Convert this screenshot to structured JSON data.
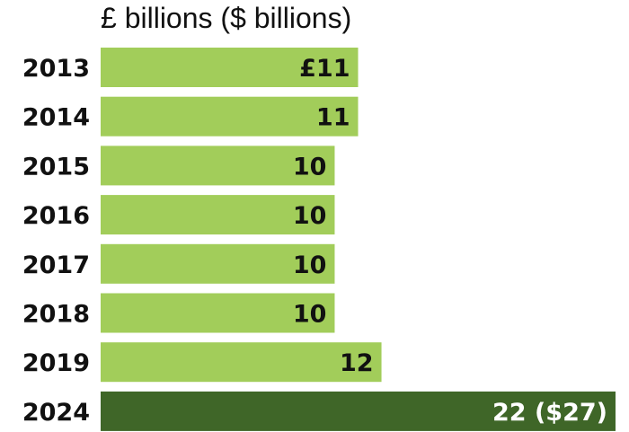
{
  "chart_data": {
    "type": "bar",
    "orientation": "horizontal",
    "title": "£ billions ($ billions)",
    "categories": [
      "2013",
      "2014",
      "2015",
      "2016",
      "2017",
      "2018",
      "2019",
      "2024"
    ],
    "values": [
      11,
      11,
      10,
      10,
      10,
      10,
      12,
      22
    ],
    "data_labels": [
      "£11",
      "11",
      "10",
      "10",
      "10",
      "10",
      "12",
      "22 ($27)"
    ],
    "xlim": [
      0,
      22
    ],
    "grid": false,
    "colors": {
      "default": "#a2cd5a",
      "highlight": "#3f6628",
      "label_dark": "#111111",
      "label_light": "#ffffff"
    },
    "highlight_index": 7
  }
}
